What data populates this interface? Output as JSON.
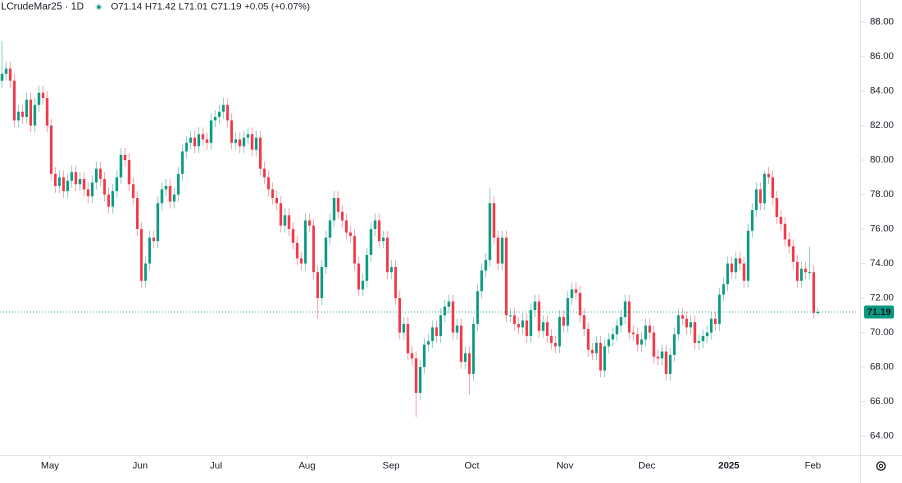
{
  "chart_data": {
    "type": "candlestick",
    "symbol": "LCrudeMar25 · 1D",
    "legend": [
      {
        "label": "O",
        "value": 71.14
      },
      {
        "label": "H",
        "value": 71.42
      },
      {
        "label": "L",
        "value": 71.01
      },
      {
        "label": "C",
        "value": 71.19
      }
    ],
    "change": "+0.05 (+0.07%)",
    "last_price": 71.19,
    "up_color": "#089981",
    "down_color": "#f23645",
    "ylim": [
      62.9,
      89.28
    ],
    "yticks": [
      {
        "value": 64,
        "label": "64.00"
      },
      {
        "value": 66,
        "label": "66.00"
      },
      {
        "value": 68,
        "label": "68.00"
      },
      {
        "value": 70,
        "label": "70.00"
      },
      {
        "value": 72,
        "label": "72.00"
      },
      {
        "value": 74,
        "label": "74.00"
      },
      {
        "value": 76,
        "label": "76.00"
      },
      {
        "value": 78,
        "label": "78.00"
      },
      {
        "value": 80,
        "label": "80.00"
      },
      {
        "value": 82,
        "label": "82.00"
      },
      {
        "value": 84,
        "label": "84.00"
      },
      {
        "value": 86,
        "label": "86.00"
      },
      {
        "value": 88,
        "label": "88.00"
      }
    ],
    "xlim": [
      -0.5,
      208.8
    ],
    "xticks": [
      {
        "value": 11.7,
        "label": "May"
      },
      {
        "value": 33.7,
        "label": "Jun"
      },
      {
        "value": 52.2,
        "label": "Jul"
      },
      {
        "value": 74.4,
        "label": "Aug"
      },
      {
        "value": 94.9,
        "label": "Sep"
      },
      {
        "value": 114.6,
        "label": "Oct"
      },
      {
        "value": 137.3,
        "label": "Nov"
      },
      {
        "value": 157.3,
        "label": "Dec"
      },
      {
        "value": 177.3,
        "label": "2025"
      },
      {
        "value": 197.8,
        "label": "Feb"
      }
    ],
    "open": [
      84.6,
      85.0,
      85.3,
      84.6,
      82.3,
      82.8,
      82.5,
      83.5,
      82.0,
      83.2,
      83.9,
      83.6,
      82.0,
      79.2,
      78.5,
      79.0,
      78.2,
      78.8,
      79.3,
      78.6,
      78.9,
      78.3,
      77.9,
      78.7,
      79.5,
      78.9,
      78.0,
      77.3,
      78.2,
      79.0,
      80.3,
      80.0,
      78.6,
      77.8,
      76.0,
      73.0,
      74.0,
      75.5,
      75.3,
      77.5,
      78.3,
      78.5,
      77.6,
      78.0,
      79.2,
      80.5,
      81.0,
      81.3,
      80.8,
      81.5,
      81.2,
      81.0,
      82.3,
      82.5,
      82.8,
      83.2,
      82.3,
      81.0,
      81.2,
      80.8,
      81.3,
      81.5,
      80.6,
      81.3,
      79.5,
      79.0,
      78.3,
      77.8,
      77.5,
      76.2,
      76.8,
      76.0,
      75.2,
      74.3,
      74.0,
      76.5,
      76.2,
      73.5,
      72.0,
      73.8,
      75.5,
      76.5,
      77.8,
      77.0,
      76.5,
      75.8,
      75.6,
      74.0,
      72.5,
      73.0,
      74.5,
      76.0,
      76.5,
      75.3,
      75.5,
      73.5,
      73.8,
      72.0,
      70.0,
      70.5,
      68.8,
      68.5,
      66.5,
      68.0,
      69.3,
      69.5,
      70.3,
      69.8,
      71.0,
      71.5,
      71.8,
      70.0,
      70.4,
      68.3,
      68.8,
      67.6,
      70.5,
      72.4,
      73.6,
      74.2,
      77.5,
      75.5,
      74.0,
      75.5,
      71.0,
      71.0,
      70.5,
      70.3,
      70.7,
      69.8,
      71.3,
      71.8,
      70.1,
      70.6,
      69.8,
      69.4,
      69.2,
      70.9,
      70.4,
      72.0,
      72.5,
      72.3,
      71.0,
      70.2,
      69.0,
      68.8,
      69.4,
      67.8,
      69.2,
      69.6,
      69.9,
      70.4,
      70.9,
      71.8,
      70.0,
      69.9,
      69.3,
      69.6,
      70.4,
      70.0,
      68.6,
      68.5,
      68.9,
      67.6,
      68.7,
      69.9,
      71.0,
      70.8,
      70.3,
      70.6,
      69.4,
      69.5,
      69.8,
      70.0,
      70.8,
      70.5,
      72.2,
      72.8,
      74.0,
      73.5,
      74.3,
      74.0,
      73.0,
      75.9,
      77.1,
      78.3,
      77.5,
      79.2,
      79.0,
      77.8,
      76.7,
      76.3,
      75.4,
      75.0,
      74.1,
      73.0,
      73.7,
      73.5,
      73.5,
      71.14
    ],
    "high": [
      86.9,
      85.7,
      85.7,
      85.0,
      83.2,
      83.2,
      83.9,
      83.9,
      83.6,
      84.3,
      84.3,
      84.0,
      82.4,
      79.6,
      79.4,
      79.4,
      79.2,
      79.7,
      79.7,
      79.3,
      79.3,
      78.7,
      79.1,
      79.9,
      79.9,
      79.3,
      78.4,
      78.6,
      79.4,
      80.7,
      80.7,
      80.4,
      79.0,
      78.2,
      76.4,
      74.4,
      75.9,
      75.9,
      77.9,
      78.7,
      78.9,
      78.9,
      78.4,
      79.6,
      80.9,
      81.4,
      81.7,
      81.7,
      81.9,
      81.9,
      81.6,
      82.7,
      82.9,
      83.2,
      83.6,
      83.6,
      82.7,
      81.6,
      81.6,
      81.7,
      81.9,
      81.9,
      81.7,
      81.7,
      79.9,
      79.4,
      78.7,
      78.2,
      77.9,
      77.2,
      77.2,
      76.4,
      75.6,
      74.7,
      76.9,
      76.9,
      76.6,
      73.9,
      74.2,
      75.9,
      76.9,
      78.2,
      78.2,
      77.4,
      76.9,
      76.2,
      76.0,
      74.4,
      73.4,
      74.9,
      76.4,
      76.9,
      76.9,
      75.9,
      75.9,
      74.2,
      74.2,
      72.4,
      70.9,
      70.9,
      69.2,
      68.9,
      68.4,
      69.7,
      69.9,
      70.7,
      70.7,
      71.4,
      71.9,
      72.2,
      72.2,
      70.8,
      70.8,
      69.2,
      69.2,
      70.9,
      72.8,
      74.0,
      74.6,
      78.4,
      77.9,
      75.9,
      75.9,
      75.9,
      71.4,
      71.4,
      70.9,
      71.1,
      71.1,
      71.7,
      72.2,
      72.2,
      71.0,
      71.0,
      70.2,
      69.8,
      71.3,
      71.3,
      72.4,
      72.9,
      72.9,
      72.7,
      71.4,
      70.6,
      69.4,
      69.8,
      69.8,
      69.6,
      70.0,
      70.3,
      70.8,
      71.3,
      72.2,
      72.2,
      70.4,
      70.3,
      70.0,
      70.8,
      70.8,
      70.4,
      69.0,
      69.3,
      69.3,
      69.1,
      70.3,
      71.4,
      71.4,
      71.2,
      71.0,
      71.0,
      69.9,
      70.2,
      70.4,
      71.2,
      71.2,
      72.6,
      73.2,
      74.4,
      74.4,
      74.7,
      74.7,
      74.4,
      76.3,
      77.5,
      78.7,
      78.7,
      79.4,
      79.6,
      79.4,
      78.2,
      77.1,
      76.7,
      75.8,
      75.4,
      74.5,
      74.1,
      74.1,
      75.0,
      73.9,
      71.42
    ],
    "low": [
      84.2,
      84.6,
      84.2,
      81.9,
      81.9,
      82.1,
      82.1,
      81.6,
      81.6,
      82.8,
      83.2,
      81.6,
      78.8,
      78.1,
      78.1,
      77.8,
      77.8,
      78.4,
      78.2,
      78.2,
      77.9,
      77.5,
      77.5,
      78.3,
      78.5,
      77.6,
      76.9,
      76.9,
      77.8,
      78.6,
      79.6,
      78.2,
      77.4,
      75.6,
      72.6,
      72.6,
      73.6,
      74.9,
      74.9,
      77.1,
      77.9,
      77.2,
      77.2,
      77.6,
      78.8,
      80.1,
      80.6,
      80.4,
      80.4,
      80.8,
      80.6,
      80.6,
      81.9,
      82.1,
      82.4,
      81.9,
      80.6,
      80.6,
      80.4,
      80.4,
      80.9,
      80.2,
      80.2,
      79.1,
      78.6,
      77.9,
      77.4,
      77.1,
      75.8,
      75.8,
      75.6,
      74.8,
      73.9,
      73.6,
      73.6,
      75.8,
      73.1,
      70.8,
      71.6,
      73.4,
      75.1,
      76.1,
      76.6,
      76.1,
      75.4,
      75.2,
      73.6,
      72.1,
      72.1,
      72.6,
      74.1,
      75.6,
      74.9,
      74.9,
      73.1,
      73.1,
      71.6,
      69.6,
      69.6,
      68.4,
      68.1,
      65.1,
      66.1,
      67.6,
      68.9,
      69.1,
      69.4,
      69.4,
      70.6,
      71.1,
      69.6,
      69.6,
      67.9,
      67.9,
      66.4,
      67.2,
      70.1,
      72.0,
      73.2,
      73.8,
      75.1,
      73.6,
      73.6,
      70.6,
      70.6,
      70.1,
      69.9,
      69.9,
      69.4,
      69.4,
      70.9,
      69.7,
      69.7,
      69.4,
      69.0,
      68.8,
      68.8,
      70.0,
      70.0,
      71.6,
      71.9,
      70.6,
      69.8,
      68.6,
      68.4,
      68.4,
      67.4,
      67.4,
      68.8,
      69.2,
      69.5,
      70.0,
      70.5,
      69.6,
      69.5,
      68.9,
      68.9,
      69.2,
      69.6,
      68.2,
      68.1,
      68.1,
      67.2,
      67.2,
      68.3,
      69.5,
      70.4,
      69.9,
      69.9,
      69.0,
      69.0,
      69.1,
      69.4,
      69.6,
      70.1,
      70.1,
      71.8,
      72.4,
      73.1,
      73.1,
      73.6,
      72.6,
      72.6,
      75.5,
      76.7,
      77.1,
      77.1,
      78.6,
      77.4,
      76.3,
      75.9,
      75.0,
      74.6,
      73.7,
      72.6,
      72.6,
      73.1,
      73.1,
      70.8,
      71.01
    ],
    "close": [
      85.0,
      85.3,
      84.6,
      82.3,
      82.8,
      82.5,
      83.5,
      82.0,
      83.2,
      83.9,
      83.6,
      82.0,
      79.2,
      78.5,
      79.0,
      78.2,
      78.8,
      79.3,
      78.6,
      78.9,
      78.3,
      77.9,
      78.7,
      79.5,
      78.9,
      78.0,
      77.3,
      78.2,
      79.0,
      80.3,
      80.0,
      78.6,
      77.8,
      76.0,
      73.0,
      74.0,
      75.5,
      75.3,
      77.5,
      78.3,
      78.5,
      77.6,
      78.0,
      79.2,
      80.5,
      81.0,
      81.3,
      80.8,
      81.5,
      81.2,
      81.0,
      82.3,
      82.5,
      82.8,
      83.2,
      82.3,
      81.0,
      81.2,
      80.8,
      81.3,
      81.5,
      80.6,
      81.3,
      79.5,
      79.0,
      78.3,
      77.8,
      77.5,
      76.2,
      76.8,
      76.0,
      75.2,
      74.3,
      74.0,
      76.5,
      76.2,
      73.5,
      72.0,
      73.8,
      75.5,
      76.5,
      77.8,
      77.0,
      76.5,
      75.8,
      75.6,
      74.0,
      72.5,
      73.0,
      74.5,
      76.0,
      76.5,
      75.3,
      75.5,
      73.5,
      73.8,
      72.0,
      70.0,
      70.5,
      68.8,
      68.5,
      66.5,
      68.0,
      69.3,
      69.5,
      70.3,
      69.8,
      71.0,
      71.5,
      71.8,
      70.0,
      70.4,
      68.3,
      68.8,
      67.6,
      70.5,
      72.4,
      73.6,
      74.2,
      77.5,
      75.5,
      74.0,
      75.5,
      71.0,
      71.0,
      70.5,
      70.3,
      70.7,
      69.8,
      71.3,
      71.8,
      70.1,
      70.6,
      69.8,
      69.4,
      69.2,
      70.9,
      70.4,
      72.0,
      72.5,
      72.3,
      71.0,
      70.2,
      69.0,
      68.8,
      69.4,
      67.8,
      69.2,
      69.6,
      69.9,
      70.4,
      70.9,
      71.8,
      70.0,
      69.9,
      69.3,
      69.6,
      70.4,
      70.0,
      68.6,
      68.5,
      68.9,
      67.6,
      68.7,
      69.9,
      71.0,
      70.8,
      70.3,
      70.6,
      69.4,
      69.5,
      69.8,
      70.0,
      70.8,
      70.5,
      72.2,
      72.8,
      74.0,
      73.5,
      74.3,
      74.0,
      73.0,
      75.9,
      77.1,
      78.3,
      77.5,
      79.2,
      79.0,
      77.8,
      76.7,
      76.3,
      75.4,
      75.0,
      74.1,
      73.0,
      73.7,
      73.5,
      73.5,
      71.14,
      71.19
    ]
  }
}
